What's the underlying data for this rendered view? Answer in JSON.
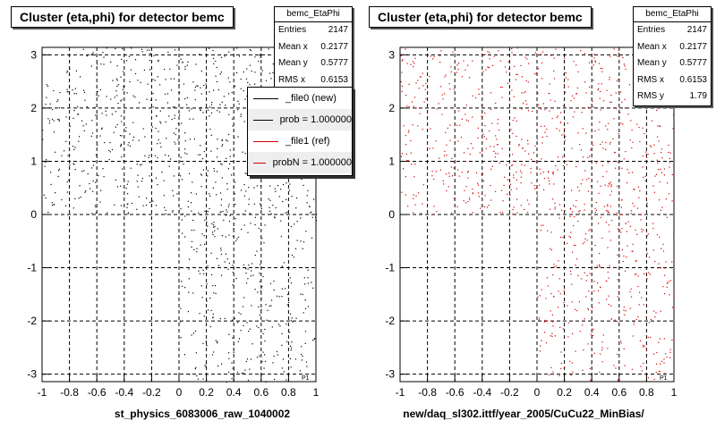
{
  "chart_data": [
    {
      "type": "scatter",
      "title": "Cluster (eta,phi) for detector bemc",
      "xlabel": "st_physics_6083006_raw_1040002",
      "ylabel": "",
      "xlim": [
        -1,
        1
      ],
      "ylim": [
        -3.14,
        3.14
      ],
      "grid": true,
      "x_ticks": [
        "-1",
        "-0.8",
        "-0.6",
        "-0.4",
        "-0.2",
        "0",
        "0.2",
        "0.4",
        "0.6",
        "0.8",
        "1"
      ],
      "y_ticks": [
        "-3",
        "-2",
        "-1",
        "0",
        "1",
        "2",
        "3"
      ],
      "marker_color": "#000000",
      "corner_label": "P1",
      "stats": {
        "name": "bemc_EtaPhi",
        "rows": [
          {
            "label": "Entries",
            "value": "2147"
          },
          {
            "label": "Mean x",
            "value": "0.2177"
          },
          {
            "label": "Mean y",
            "value": "0.5777"
          },
          {
            "label": "RMS x",
            "value": "0.6153"
          }
        ]
      },
      "legend": {
        "placement": "top-right",
        "entries": [
          {
            "label": "_file0 (new)",
            "color": "#000000"
          },
          {
            "label": "prob = 1.000000",
            "color": "#000000"
          },
          {
            "label": "_file1 (ref)",
            "color": "#d40000"
          },
          {
            "label": "probN = 1.000000",
            "color": "#d40000"
          }
        ]
      },
      "density_regions": [
        {
          "x": [
            -1.0,
            1.0
          ],
          "y": [
            0.0,
            3.14
          ],
          "weight": 700
        },
        {
          "x": [
            0.0,
            1.0
          ],
          "y": [
            -3.14,
            0.0
          ],
          "weight": 300
        }
      ]
    },
    {
      "type": "scatter",
      "title": "Cluster (eta,phi) for detector bemc",
      "xlabel": "new/daq_sl302.ittf/year_2005/CuCu22_MinBias/",
      "ylabel": "",
      "xlim": [
        -1,
        1
      ],
      "ylim": [
        -3.14,
        3.14
      ],
      "grid": true,
      "x_ticks": [
        "-1",
        "-0.8",
        "-0.6",
        "-0.4",
        "-0.2",
        "0",
        "0.2",
        "0.4",
        "0.6",
        "0.8",
        "1"
      ],
      "y_ticks": [
        "-3",
        "-2",
        "-1",
        "0",
        "1",
        "2",
        "3"
      ],
      "marker_color": "#d40000",
      "corner_label": "P1",
      "stats": {
        "name": "bemc_EtaPhi",
        "rows": [
          {
            "label": "Entries",
            "value": "2147"
          },
          {
            "label": "Mean x",
            "value": "0.2177"
          },
          {
            "label": "Mean y",
            "value": "0.5777"
          },
          {
            "label": "RMS x",
            "value": "0.6153"
          },
          {
            "label": "RMS y",
            "value": "1.79"
          }
        ]
      },
      "density_regions": [
        {
          "x": [
            -1.0,
            1.0
          ],
          "y": [
            0.0,
            3.14
          ],
          "weight": 700
        },
        {
          "x": [
            0.0,
            1.0
          ],
          "y": [
            -3.14,
            0.0
          ],
          "weight": 300
        }
      ]
    }
  ]
}
